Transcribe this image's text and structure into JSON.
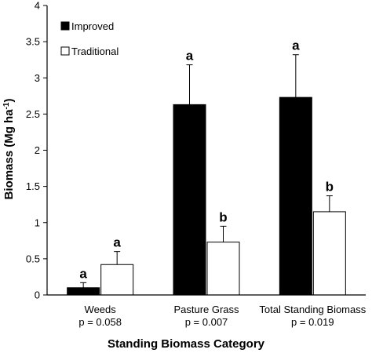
{
  "chart_data": {
    "type": "bar",
    "categories": [
      "Weeds",
      "Pasture Grass",
      "Total Standing Biomass"
    ],
    "p_values": [
      "p = 0.058",
      "p = 0.007",
      "p = 0.019"
    ],
    "series": [
      {
        "name": "Improved",
        "color": "#000000",
        "values": [
          0.1,
          2.63,
          2.73
        ],
        "errors": [
          0.07,
          0.55,
          0.59
        ],
        "labels": [
          "a",
          "a",
          "a"
        ]
      },
      {
        "name": "Traditional",
        "color": "#ffffff",
        "values": [
          0.42,
          0.73,
          1.15
        ],
        "errors": [
          0.18,
          0.22,
          0.22
        ],
        "labels": [
          "a",
          "b",
          "b"
        ]
      }
    ],
    "xlabel": "Standing Biomass Category",
    "ylabel_main": "Biomass (Mg ha",
    "ylabel_sup": "-1",
    "ylabel_close": ")",
    "ylim": [
      0,
      4
    ],
    "yticks": [
      "0",
      "0.5",
      "1",
      "1.5",
      "2",
      "2.5",
      "3",
      "3.5",
      "4"
    ],
    "legend_position": "top-left",
    "grid": false
  }
}
